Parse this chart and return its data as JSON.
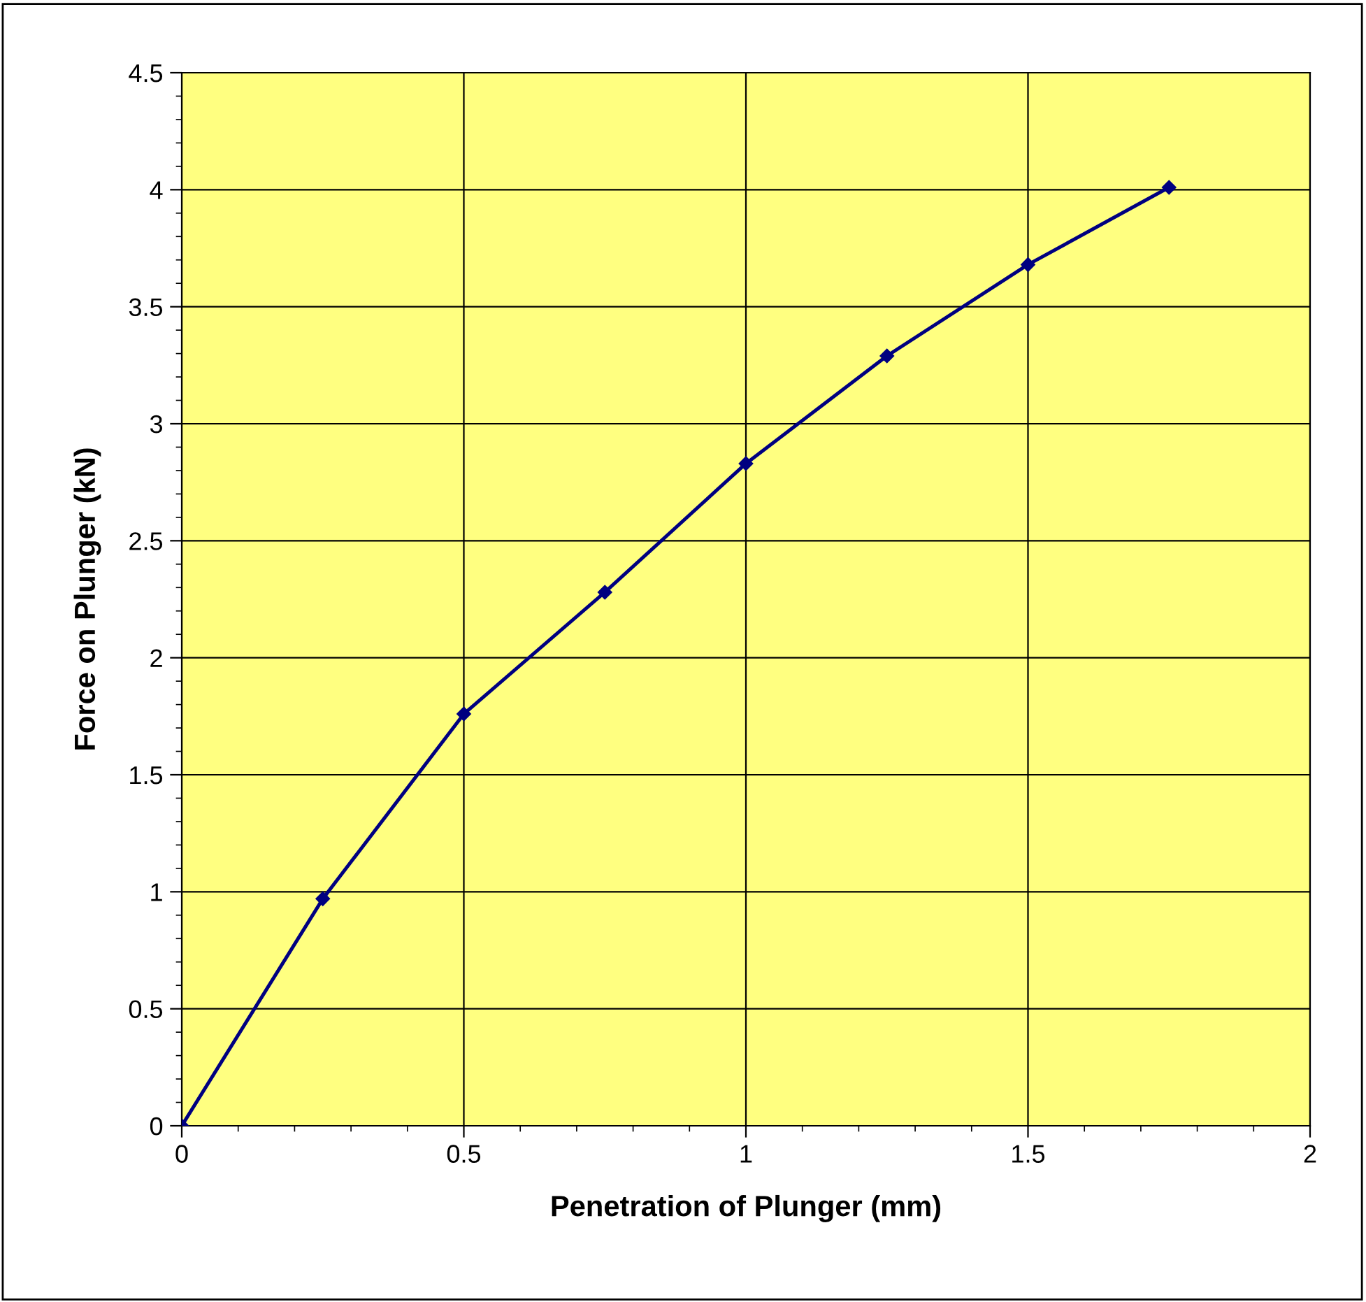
{
  "chart_data": {
    "type": "line",
    "xlabel": "Penetration of Plunger (mm)",
    "ylabel": "Force on Plunger (kN)",
    "x": [
      0,
      0.25,
      0.5,
      0.75,
      1.0,
      1.25,
      1.5,
      1.75
    ],
    "series": [
      {
        "color": "#000080",
        "values": [
          0,
          0.97,
          1.76,
          2.28,
          2.83,
          3.29,
          3.68,
          4.01
        ]
      }
    ],
    "xlim": [
      0,
      2
    ],
    "xticks": [
      0,
      0.5,
      1,
      1.5,
      2
    ],
    "ylim": [
      0,
      4.5
    ],
    "yticks": [
      0,
      0.5,
      1,
      1.5,
      2,
      2.5,
      3,
      3.5,
      4,
      4.5
    ],
    "grid": true,
    "marker": "diamond",
    "line_style": "solid"
  }
}
